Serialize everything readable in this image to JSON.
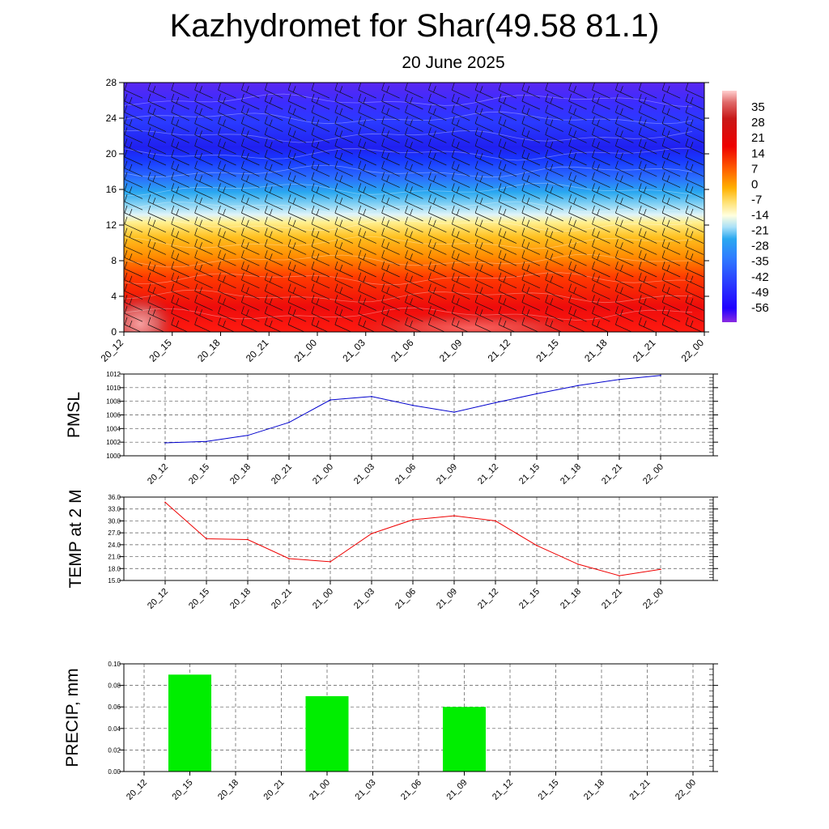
{
  "header": {
    "title": "Kazhydromet for Shar(49.58 81.1)",
    "date": "20 June 2025"
  },
  "colors": {
    "pmsl_line": "#0000cc",
    "temp_line": "#ee0000",
    "precip_bar": "#00ee00"
  },
  "chart_data": [
    {
      "type": "heatmap",
      "name": "upper-air temperature and wind cross-section",
      "x_ticks": [
        "20_12",
        "20_15",
        "20_18",
        "20_21",
        "21_00",
        "21_03",
        "21_06",
        "21_09",
        "21_12",
        "21_15",
        "21_18",
        "21_21",
        "22_00"
      ],
      "y_ticks": [
        0,
        4,
        8,
        12,
        16,
        20,
        24,
        28
      ],
      "ylim": [
        0,
        28
      ],
      "colorbar_labels": [
        35,
        28,
        21,
        14,
        7,
        0,
        -7,
        -14,
        -21,
        -28,
        -35,
        -42,
        -49,
        -56
      ],
      "colorbar_range": [
        -63,
        42
      ],
      "colorbar_colors": [
        "#8a2be2",
        "#2000ff",
        "#2a3cff",
        "#2f7dff",
        "#2aa8f0",
        "#50c8f8",
        "#a8e0f8",
        "#ffffe0",
        "#fff090",
        "#ffd040",
        "#ffa800",
        "#ff7800",
        "#ff3000",
        "#ee0000",
        "#d01010",
        "#c02828",
        "#e06a6a",
        "#ffc8c8"
      ],
      "grid": true
    },
    {
      "type": "line",
      "ylabel": "PMSL",
      "categories": [
        "20_12",
        "20_15",
        "20_18",
        "20_21",
        "21_00",
        "21_03",
        "21_06",
        "21_09",
        "21_12",
        "21_15",
        "21_18",
        "21_21",
        "22_00"
      ],
      "values": [
        1001.9,
        1002.1,
        1003.0,
        1004.9,
        1008.2,
        1008.7,
        1007.4,
        1006.4,
        1007.8,
        1009.1,
        1010.3,
        1011.2,
        1011.8
      ],
      "ylim": [
        1000,
        1012
      ],
      "yticks": [
        "1000",
        "1002",
        "1004",
        "1006",
        "1008",
        "1010",
        "1012"
      ],
      "grid": true
    },
    {
      "type": "line",
      "ylabel": "TEMP at 2 M",
      "categories": [
        "20_12",
        "20_15",
        "20_18",
        "20_21",
        "21_00",
        "21_03",
        "21_06",
        "21_09",
        "21_12",
        "21_15",
        "21_18",
        "21_21",
        "22_00"
      ],
      "values": [
        34.7,
        25.5,
        25.3,
        20.5,
        19.7,
        26.8,
        30.3,
        31.3,
        30.0,
        23.8,
        19.1,
        16.2,
        17.8
      ],
      "ylim": [
        15,
        36
      ],
      "yticks": [
        "15.0",
        "18.0",
        "21.0",
        "24.0",
        "27.0",
        "30.0",
        "33.0",
        "36.0"
      ],
      "grid": true
    },
    {
      "type": "bar",
      "ylabel": "PRECIP, mm",
      "categories": [
        "20_12",
        "20_15",
        "20_18",
        "20_21",
        "21_00",
        "21_03",
        "21_06",
        "21_09",
        "21_12",
        "21_15",
        "21_18",
        "21_21",
        "22_00"
      ],
      "values": [
        0,
        0.09,
        0,
        0,
        0.07,
        0,
        0,
        0.06,
        0,
        0,
        0,
        0,
        0
      ],
      "ylim": [
        0,
        0.1
      ],
      "yticks": [
        "0.00",
        "0.02",
        "0.04",
        "0.06",
        "0.08",
        "0.10"
      ],
      "grid": true
    }
  ]
}
